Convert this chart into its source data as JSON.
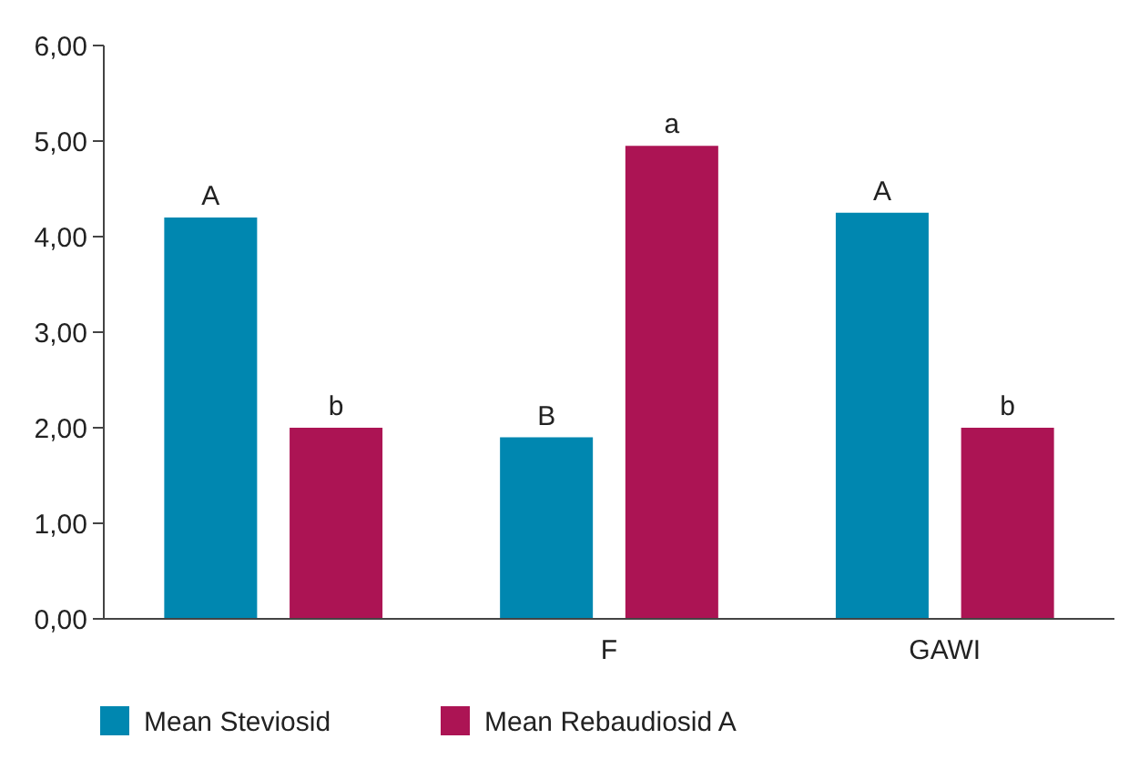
{
  "chart_data": {
    "type": "bar",
    "categories": [
      null,
      "F",
      "GAWI"
    ],
    "series": [
      {
        "name": "Mean Steviosid",
        "color": "#0087b0",
        "values": [
          4.2,
          1.9,
          4.25
        ],
        "value_labels": [
          "A",
          "B",
          "A"
        ]
      },
      {
        "name": "Mean Rebaudiosid A",
        "color": "#ac1454",
        "values": [
          2.0,
          4.95,
          2.0
        ],
        "value_labels": [
          "b",
          "a",
          "b"
        ]
      }
    ],
    "ylim": [
      0,
      6
    ],
    "yticks": [
      {
        "value": 0,
        "label": "0,00"
      },
      {
        "value": 1,
        "label": "1,00"
      },
      {
        "value": 2,
        "label": "2,00"
      },
      {
        "value": 3,
        "label": "3,00"
      },
      {
        "value": 4,
        "label": "4,00"
      },
      {
        "value": 5,
        "label": "5,00"
      },
      {
        "value": 6,
        "label": "6,00"
      }
    ],
    "grid": false,
    "legend": "bottom left"
  }
}
